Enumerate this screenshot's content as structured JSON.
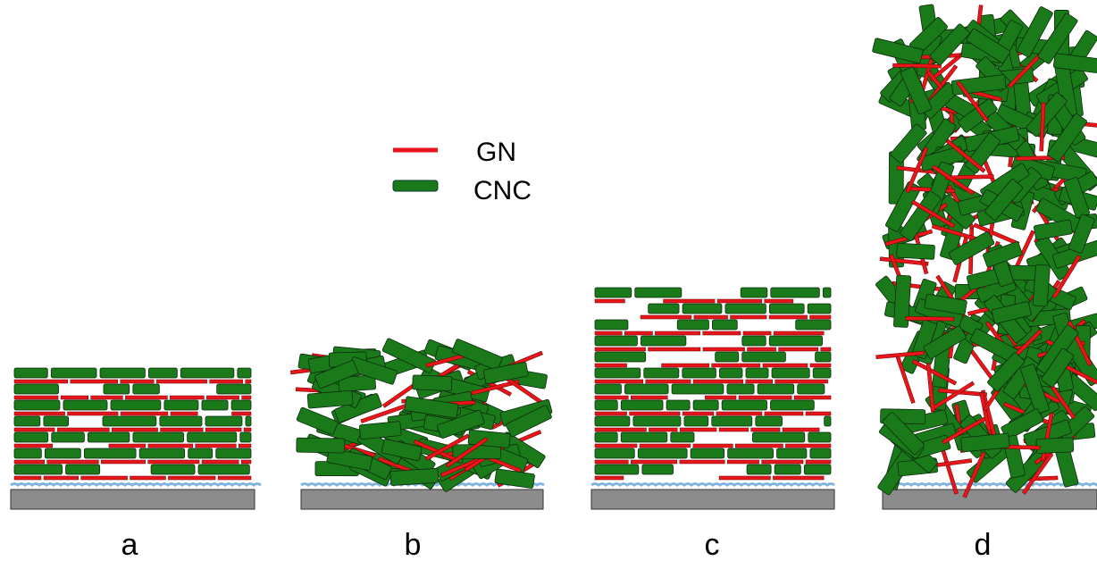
{
  "legend": {
    "items": [
      {
        "label": "GN",
        "color": "#e8161b"
      },
      {
        "label": "CNC",
        "color": "#1a7a1a"
      }
    ]
  },
  "panels": [
    {
      "label": "a"
    },
    {
      "label": "b"
    },
    {
      "label": "c"
    },
    {
      "label": "d"
    }
  ]
}
